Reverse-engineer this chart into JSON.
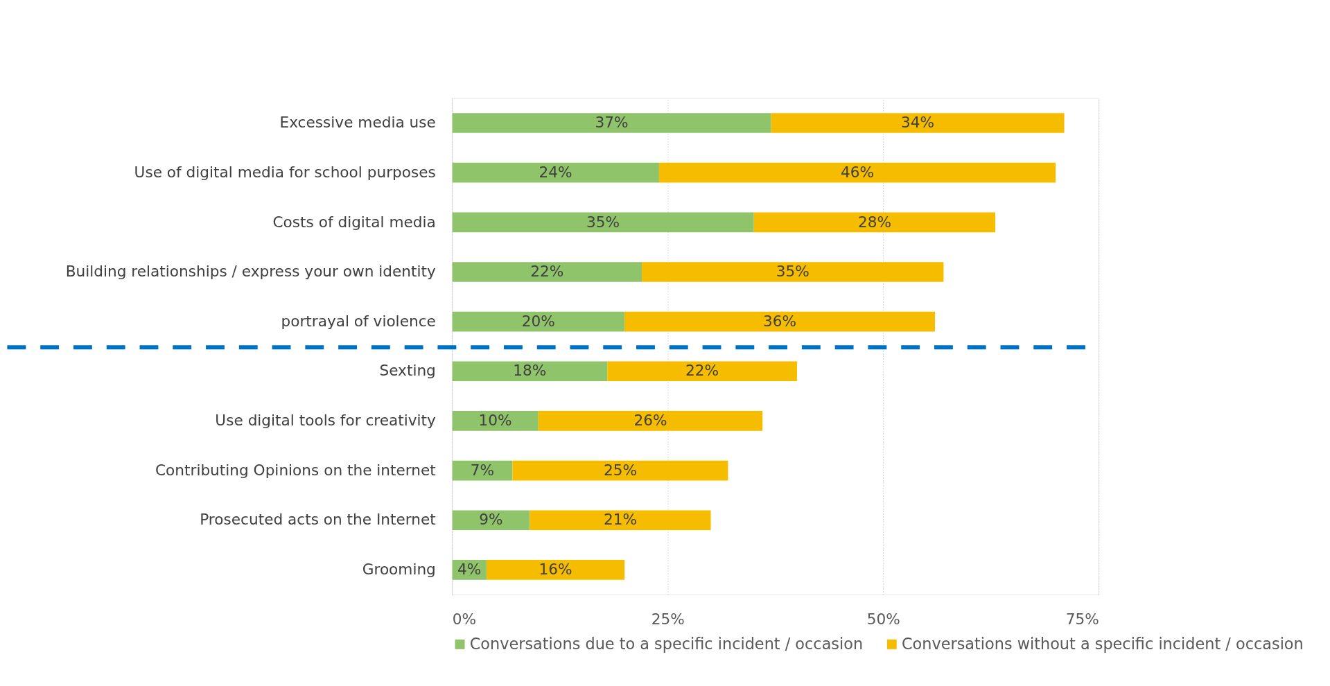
{
  "chart_data": {
    "type": "bar",
    "orientation": "horizontal",
    "stacked": true,
    "categories": [
      "Excessive media use",
      "Use of digital media for school purposes",
      "Costs of digital media",
      "Building relationships / express your own identity",
      "portrayal of violence",
      "Sexting",
      "Use digital tools for creativity",
      "Contributing Opinions on the internet",
      "Prosecuted acts on the Internet",
      "Grooming"
    ],
    "series": [
      {
        "name": "Conversations due to a specific incident / occasion",
        "color": "#8fc46b",
        "values": [
          37,
          24,
          35,
          22,
          20,
          18,
          10,
          7,
          9,
          4
        ],
        "value_labels": [
          "37%",
          "24%",
          "35%",
          "22%",
          "20%",
          "18%",
          "10%",
          "7%",
          "9%",
          "4%"
        ]
      },
      {
        "name": "Conversations without a specific incident / occasion",
        "color": "#f6bc00",
        "values": [
          34,
          46,
          28,
          35,
          36,
          22,
          26,
          25,
          21,
          16
        ],
        "value_labels": [
          "34%",
          "46%",
          "28%",
          "35%",
          "36%",
          "22%",
          "26%",
          "25%",
          "21%",
          "16%"
        ]
      }
    ],
    "xlim": [
      0,
      75
    ],
    "xticks": [
      {
        "value": 0,
        "label": "0%"
      },
      {
        "value": 25,
        "label": "25%"
      },
      {
        "value": 50,
        "label": "50%"
      },
      {
        "value": 75,
        "label": "75%"
      }
    ],
    "grid": "x",
    "legend": "bottom",
    "ref_lines": [
      {
        "axis": "y",
        "value": "Sexting",
        "color": "#0070c0",
        "line_style": "dashed"
      }
    ]
  }
}
